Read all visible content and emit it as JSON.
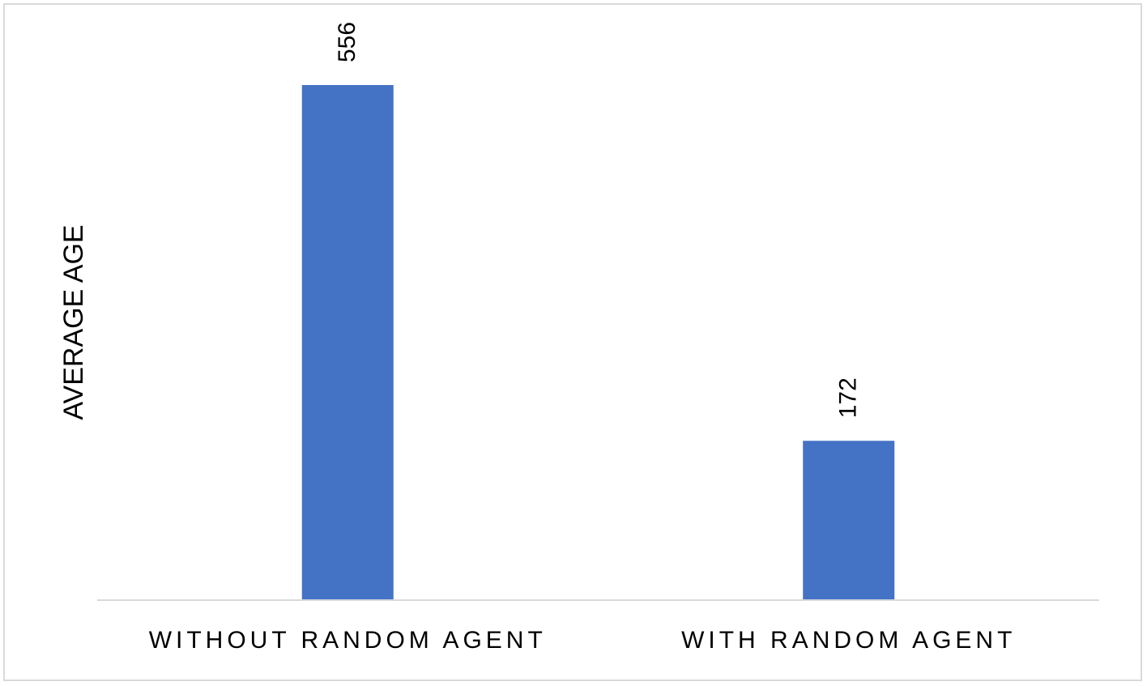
{
  "chart_data": {
    "type": "bar",
    "categories": [
      "WITHOUT RANDOM AGENT",
      "WITH RANDOM AGENT"
    ],
    "values": [
      556,
      172
    ],
    "data_labels": [
      "556",
      "172"
    ],
    "title": "",
    "xlabel": "",
    "ylabel": "AVERAGE AGE",
    "ylim": [
      0,
      600
    ],
    "grid": false,
    "legend": "none",
    "bar_color": "#4472C4",
    "axis_color": "#d9d9d9"
  }
}
